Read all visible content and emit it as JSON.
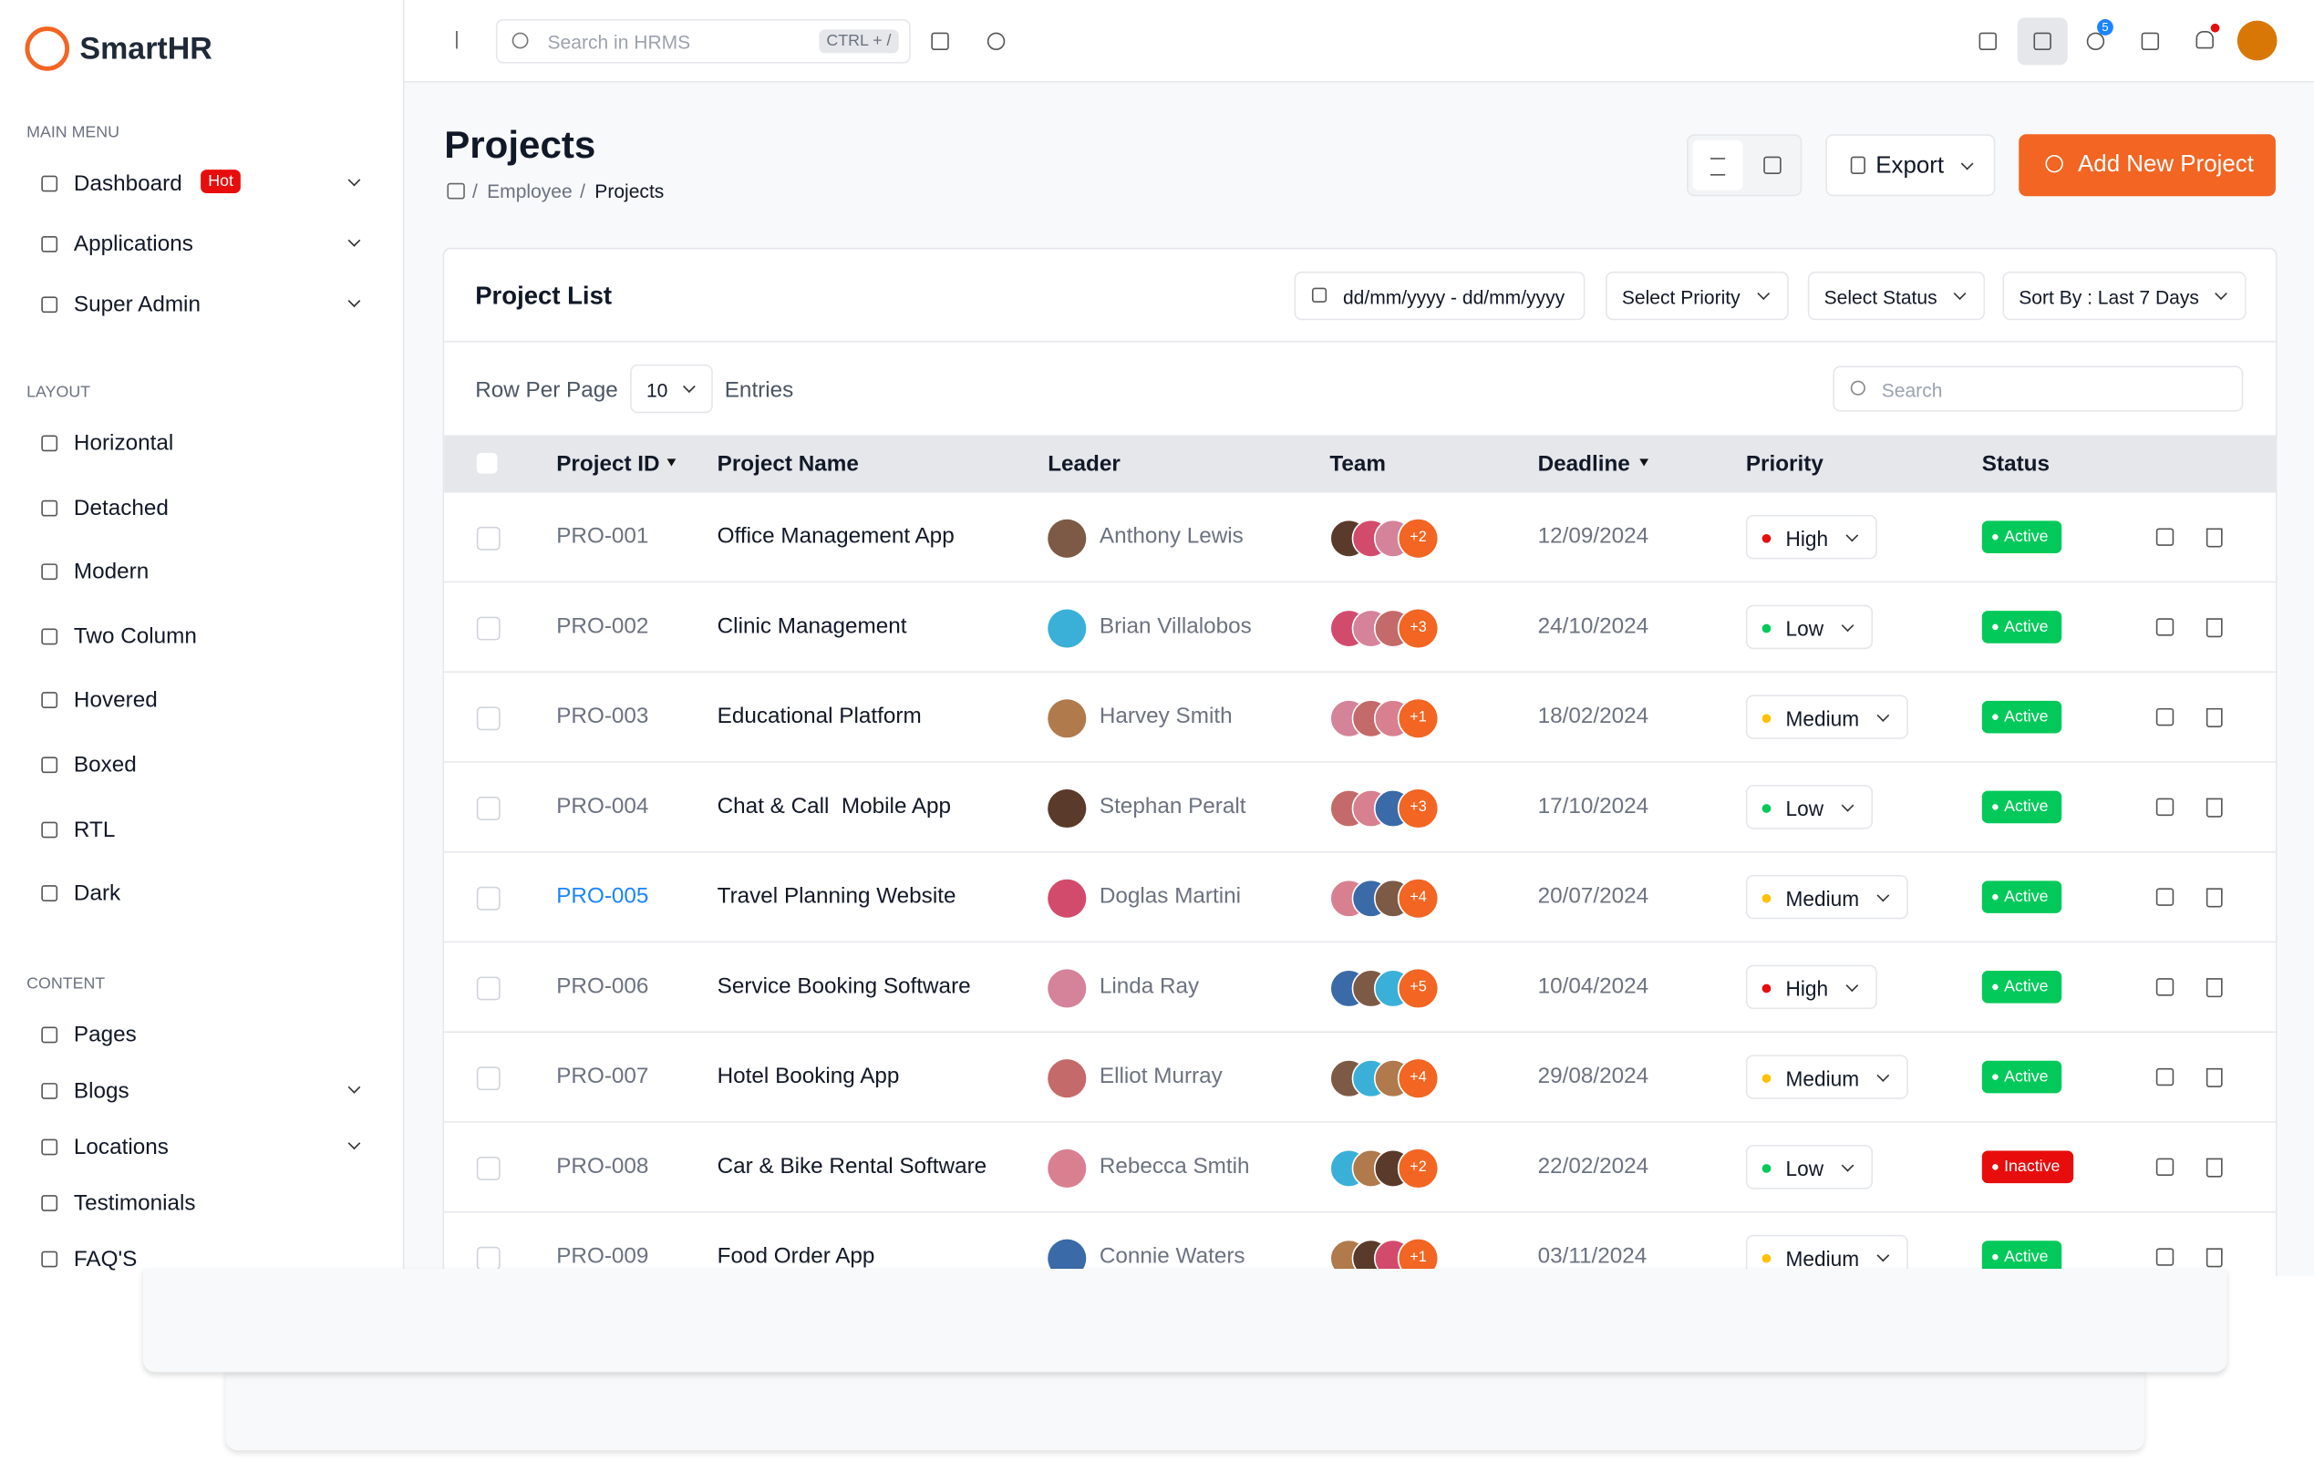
{
  "brand": "SmartHR",
  "sidebar": {
    "sections": [
      {
        "title": "MAIN MENU",
        "items": [
          {
            "label": "Dashboard",
            "badge": "Hot",
            "expandable": true
          },
          {
            "label": "Applications",
            "expandable": true
          },
          {
            "label": "Super Admin",
            "expandable": true
          }
        ]
      },
      {
        "title": "LAYOUT",
        "items": [
          {
            "label": "Horizontal"
          },
          {
            "label": "Detached"
          },
          {
            "label": "Modern"
          },
          {
            "label": "Two Column"
          },
          {
            "label": "Hovered"
          },
          {
            "label": "Boxed"
          },
          {
            "label": "RTL"
          },
          {
            "label": "Dark"
          }
        ]
      },
      {
        "title": "CONTENT",
        "items": [
          {
            "label": "Pages"
          },
          {
            "label": "Blogs",
            "expandable": true
          },
          {
            "label": "Locations",
            "expandable": true
          },
          {
            "label": "Testimonials"
          },
          {
            "label": "FAQ'S"
          }
        ]
      }
    ]
  },
  "topbar": {
    "search_placeholder": "Search in HRMS",
    "shortcut": "CTRL + /",
    "chat_badge": 5
  },
  "page": {
    "title": "Projects",
    "breadcrumb": [
      "Employee",
      "Projects"
    ],
    "export": "Export",
    "add_button": "Add New Project"
  },
  "card": {
    "title": "Project List",
    "date_placeholder": "dd/mm/yyyy - dd/mm/yyyy",
    "priority_filter": "Select Priority",
    "status_filter": "Select Status",
    "sort": "Sort By : Last 7 Days",
    "row_per_page": "Row Per Page",
    "rows_value": 10,
    "entries": "Entries",
    "search_placeholder": "Search"
  },
  "table": {
    "columns": [
      "Project ID",
      "Project Name",
      "Leader",
      "Team",
      "Deadline",
      "Priority",
      "Status"
    ],
    "rows": [
      [
        "PRO-001",
        "Office Management App",
        "Anthony Lewis",
        "+2",
        "12/09/2024",
        "High",
        "Active"
      ],
      [
        "PRO-002",
        "Clinic Management",
        "Brian Villalobos",
        "+3",
        "24/10/2024",
        "Low",
        "Active"
      ],
      [
        "PRO-003",
        "Educational Platform",
        "Harvey Smith",
        "+1",
        "18/02/2024",
        "Medium",
        "Active"
      ],
      [
        "PRO-004",
        "Chat & Call  Mobile App",
        "Stephan Peralt",
        "+3",
        "17/10/2024",
        "Low",
        "Active"
      ],
      [
        "PRO-005",
        "Travel Planning Website",
        "Doglas Martini",
        "+4",
        "20/07/2024",
        "Medium",
        "Active"
      ],
      [
        "PRO-006",
        "Service Booking Software",
        "Linda Ray",
        "+5",
        "10/04/2024",
        "High",
        "Active"
      ],
      [
        "PRO-007",
        "Hotel Booking App",
        "Elliot Murray",
        "+4",
        "29/08/2024",
        "Medium",
        "Active"
      ],
      [
        "PRO-008",
        "Car & Bike Rental Software",
        "Rebecca Smtih",
        "+2",
        "22/02/2024",
        "Low",
        "Inactive"
      ],
      [
        "PRO-009",
        "Food Order App",
        "Connie Waters",
        "+1",
        "03/11/2024",
        "Medium",
        "Active"
      ]
    ]
  }
}
